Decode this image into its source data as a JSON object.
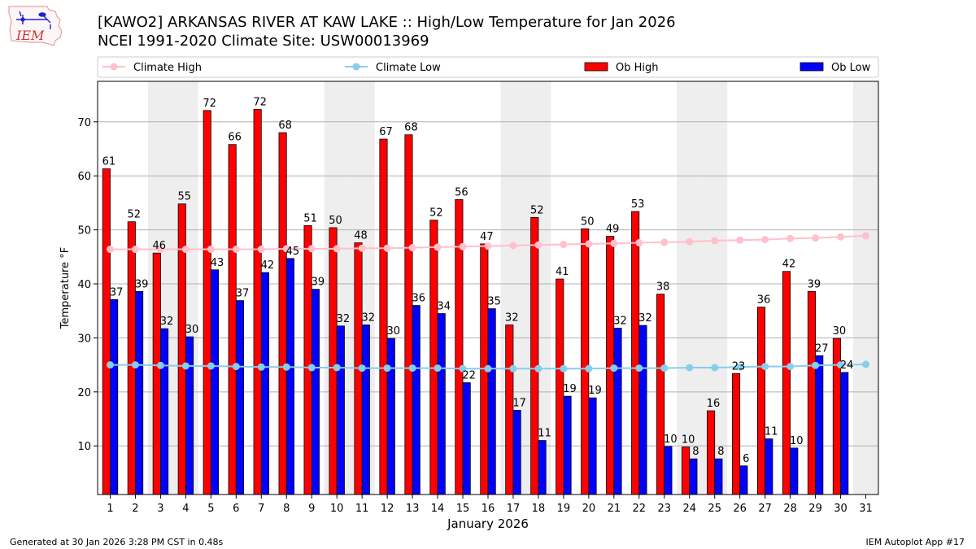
{
  "header": {
    "title_line1": "[KAWO2] ARKANSAS RIVER  AT KAW LAKE :: High/Low Temperature for Jan 2026",
    "title_line2": "NCEI 1991-2020 Climate Site: USW00013969",
    "logo_text": "IEM"
  },
  "footer": {
    "left": "Generated at 30 Jan 2026 3:28 PM CST in 0.48s",
    "right": "IEM Autoplot App #17"
  },
  "colors": {
    "ob_high": "#ff0000",
    "ob_low": "#0000ff",
    "climate_high": "#ffc0cb",
    "climate_low": "#87ceeb",
    "weekend_shade": "#eeeeee",
    "grid": "#b0b0b0"
  },
  "chart_data": {
    "type": "bar",
    "xlabel": "January 2026",
    "ylabel": "Temperature °F",
    "ylim": [
      1,
      77.5
    ],
    "yticks": [
      10,
      20,
      30,
      40,
      50,
      60,
      70
    ],
    "grid": "horizontal",
    "legend_placement": "top",
    "categories": [
      "1",
      "2",
      "3",
      "4",
      "5",
      "6",
      "7",
      "8",
      "9",
      "10",
      "11",
      "12",
      "13",
      "14",
      "15",
      "16",
      "17",
      "18",
      "19",
      "20",
      "21",
      "22",
      "23",
      "24",
      "25",
      "26",
      "27",
      "28",
      "29",
      "30",
      "31"
    ],
    "shaded_days": [
      3,
      4,
      10,
      11,
      17,
      18,
      24,
      25,
      31
    ],
    "legend": [
      "Climate High",
      "Climate Low",
      "Ob High",
      "Ob Low"
    ],
    "series": [
      {
        "name": "Ob High",
        "kind": "bar",
        "values": [
          61.3,
          51.5,
          45.7,
          54.8,
          72.1,
          65.8,
          72.3,
          68.0,
          50.8,
          50.4,
          47.6,
          66.8,
          67.6,
          51.8,
          55.6,
          47.4,
          32.4,
          52.3,
          40.9,
          50.2,
          48.8,
          53.4,
          38.1,
          9.8,
          16.5,
          23.4,
          35.7,
          42.3,
          38.6,
          29.9,
          null
        ],
        "labels": [
          "61",
          "52",
          "46",
          "55",
          "72",
          "66",
          "72",
          "68",
          "51",
          "50",
          "48",
          "67",
          "68",
          "52",
          "56",
          "47",
          "32",
          "52",
          "41",
          "50",
          "49",
          "53",
          "38",
          "10",
          "16",
          "23",
          "36",
          "42",
          "39",
          "30",
          ""
        ]
      },
      {
        "name": "Ob Low",
        "kind": "bar",
        "values": [
          37.1,
          38.6,
          31.7,
          30.2,
          42.6,
          36.9,
          42.1,
          44.7,
          39.0,
          32.2,
          32.4,
          29.9,
          36.0,
          34.5,
          21.7,
          35.4,
          16.6,
          11.0,
          19.2,
          18.9,
          31.8,
          32.3,
          9.9,
          7.6,
          7.6,
          6.3,
          11.3,
          9.6,
          26.7,
          23.6,
          null
        ],
        "labels": [
          "37",
          "39",
          "32",
          "30",
          "43",
          "37",
          "42",
          "45",
          "39",
          "32",
          "32",
          "30",
          "36",
          "34",
          "22",
          "35",
          "17",
          "11",
          "19",
          "19",
          "32",
          "32",
          "10",
          "8",
          "8",
          "6",
          "11",
          "10",
          "27",
          "24",
          ""
        ]
      },
      {
        "name": "Climate High",
        "kind": "line",
        "values": [
          46.4,
          46.4,
          46.4,
          46.4,
          46.4,
          46.4,
          46.4,
          46.5,
          46.5,
          46.5,
          46.6,
          46.6,
          46.7,
          46.8,
          46.9,
          47.0,
          47.1,
          47.2,
          47.3,
          47.4,
          47.5,
          47.6,
          47.7,
          47.8,
          48.0,
          48.1,
          48.2,
          48.4,
          48.5,
          48.7,
          48.9
        ]
      },
      {
        "name": "Climate Low",
        "kind": "line",
        "values": [
          25.0,
          25.0,
          24.9,
          24.8,
          24.8,
          24.7,
          24.6,
          24.6,
          24.5,
          24.5,
          24.4,
          24.4,
          24.4,
          24.4,
          24.3,
          24.3,
          24.3,
          24.3,
          24.3,
          24.3,
          24.4,
          24.4,
          24.4,
          24.5,
          24.5,
          24.6,
          24.7,
          24.7,
          24.9,
          25.0,
          25.1
        ]
      }
    ]
  }
}
